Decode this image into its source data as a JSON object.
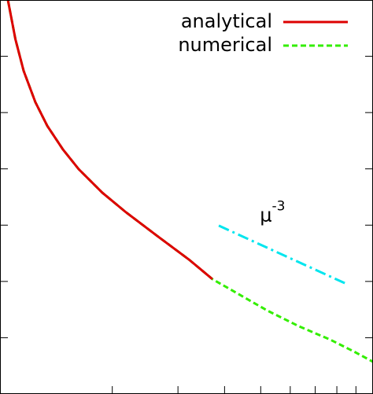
{
  "chart_data": {
    "type": "line",
    "log_x": true,
    "log_y": true,
    "xlim": [
      1,
      10
    ],
    "xticks": [
      2,
      3,
      4,
      5,
      6,
      7,
      8,
      9
    ],
    "ylim": [
      1e-07,
      1
    ],
    "yticks": [
      1e-06,
      1e-05,
      0.0001,
      0.001,
      0.01,
      0.1
    ],
    "legend": "upper right",
    "series": [
      {
        "name": "analytical",
        "color": "#dd0000",
        "style": "solid",
        "x": [
          1.05,
          1.1,
          1.157,
          1.244,
          1.339,
          1.475,
          1.625,
          1.88,
          2.177,
          2.64,
          3.21,
          3.71
        ],
        "values": [
          1,
          0.2,
          0.0553,
          0.0153,
          0.0058,
          0.00221,
          0.00099,
          0.000378,
          0.000169,
          6.43e-05,
          2.45e-05,
          1.1e-05
        ]
      },
      {
        "name": "numerical",
        "color": "#33ee00",
        "style": "dashed",
        "x": [
          1.05,
          1.1,
          1.157,
          1.244,
          1.339,
          1.475,
          1.625,
          1.88,
          2.177,
          2.64,
          3.21,
          3.71,
          4.29,
          5.21,
          6.34,
          7.69,
          8.89,
          10
        ],
        "values": [
          1,
          0.2,
          0.0553,
          0.0153,
          0.0058,
          0.00221,
          0.00099,
          0.000378,
          0.000169,
          6.43e-05,
          2.45e-05,
          1.1e-05,
          6.34e-06,
          3.03e-06,
          1.59e-06,
          9.2e-07,
          5.68e-07,
          3.74e-07
        ]
      }
    ],
    "annotation": {
      "base": "μ",
      "exponent": "-3",
      "color": "#00e5ee",
      "x": [
        3.86,
        8.58
      ],
      "values": [
        9.8e-05,
        8.75e-06
      ]
    }
  }
}
